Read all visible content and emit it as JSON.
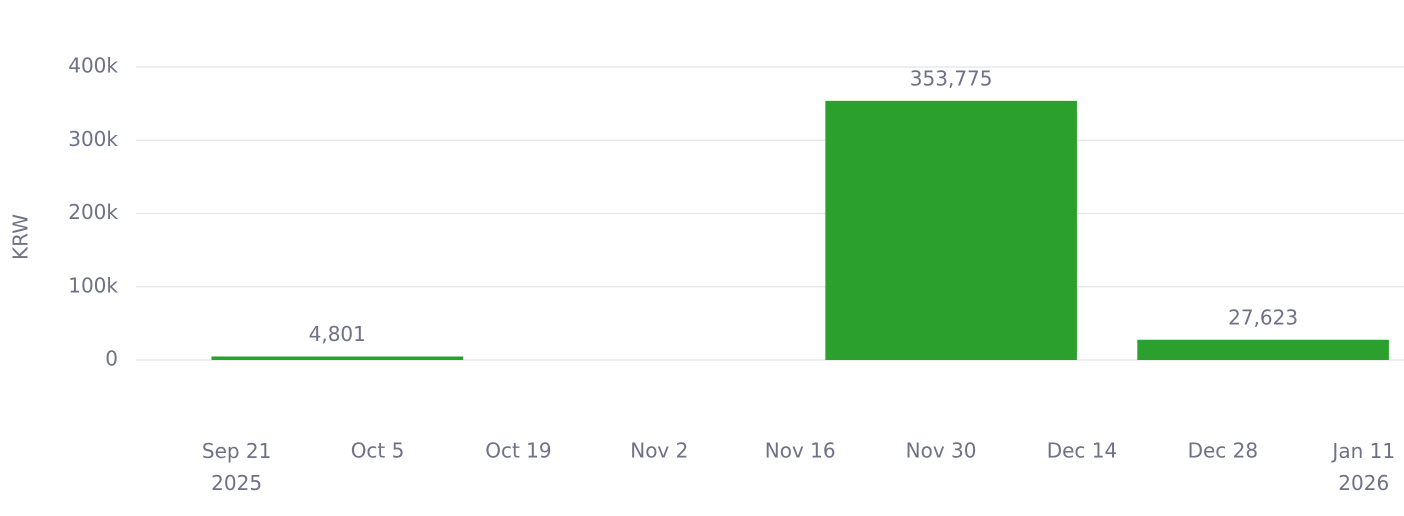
{
  "chart_data": {
    "type": "bar",
    "y_label": "KRW",
    "color": "#2ca02c",
    "x": [
      "2025-10-01",
      "2025-12-01",
      "2026-01-01"
    ],
    "values": [
      4801,
      353775,
      27623
    ],
    "value_labels": [
      "4,801",
      "353,775",
      "27,623"
    ],
    "xlim": [
      "2025-09-11",
      "2026-01-15"
    ],
    "xticks": [
      {
        "value": "2025-09-21",
        "label": "Sep 21\n2025"
      },
      {
        "value": "2025-10-05",
        "label": "Oct 5"
      },
      {
        "value": "2025-10-19",
        "label": "Oct 19"
      },
      {
        "value": "2025-11-02",
        "label": "Nov 2"
      },
      {
        "value": "2025-11-16",
        "label": "Nov 16"
      },
      {
        "value": "2025-11-30",
        "label": "Nov 30"
      },
      {
        "value": "2025-12-14",
        "label": "Dec 14"
      },
      {
        "value": "2025-12-28",
        "label": "Dec 28"
      },
      {
        "value": "2026-01-11",
        "label": "Jan 11\n2026"
      }
    ],
    "ylim": [
      0,
      400000
    ],
    "yticks": [
      {
        "value": 0,
        "label": "0"
      },
      {
        "value": 100000,
        "label": "100k"
      },
      {
        "value": 200000,
        "label": "200k"
      },
      {
        "value": 300000,
        "label": "300k"
      },
      {
        "value": 400000,
        "label": "400k"
      }
    ],
    "grid": true
  }
}
